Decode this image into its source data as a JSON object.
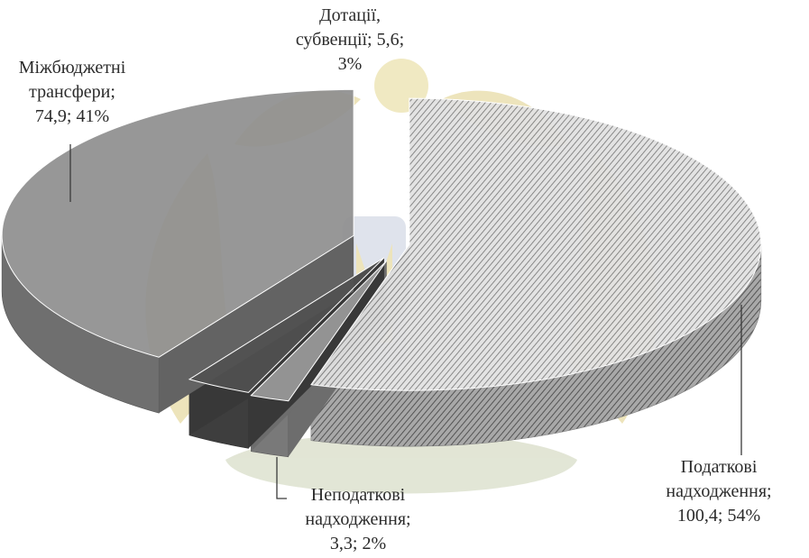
{
  "chart_data": {
    "type": "pie",
    "style": "3d-exploded",
    "slices": [
      {
        "name": "Податкові надходження",
        "label_lines": [
          "Податкові",
          "надходження;",
          "100,4;  54%"
        ],
        "value": 100.4,
        "percent": 54,
        "color": "#c9c9c9",
        "pattern": "hatch"
      },
      {
        "name": "Неподаткові надходження",
        "label_lines": [
          "Неподаткові",
          "надходження;",
          "3,3;  2%"
        ],
        "value": 3.3,
        "percent": 2,
        "color": "#9b9b9b",
        "pattern": "solid"
      },
      {
        "name": "Дотації, субвенції",
        "label_lines": [
          "Дотації,",
          "субвенції;  5,6;",
          "3%"
        ],
        "value": 5.6,
        "percent": 3,
        "color": "#505050",
        "pattern": "solid"
      },
      {
        "name": "Міжбюджетні трансфери",
        "label_lines": [
          "Міжбюджетні",
          "трансфери;",
          "74,9;  41%"
        ],
        "value": 74.9,
        "percent": 41,
        "color": "#8e8e8e",
        "pattern": "solid"
      }
    ],
    "legend": "none",
    "watermark": "coat-of-arms-emblem"
  }
}
